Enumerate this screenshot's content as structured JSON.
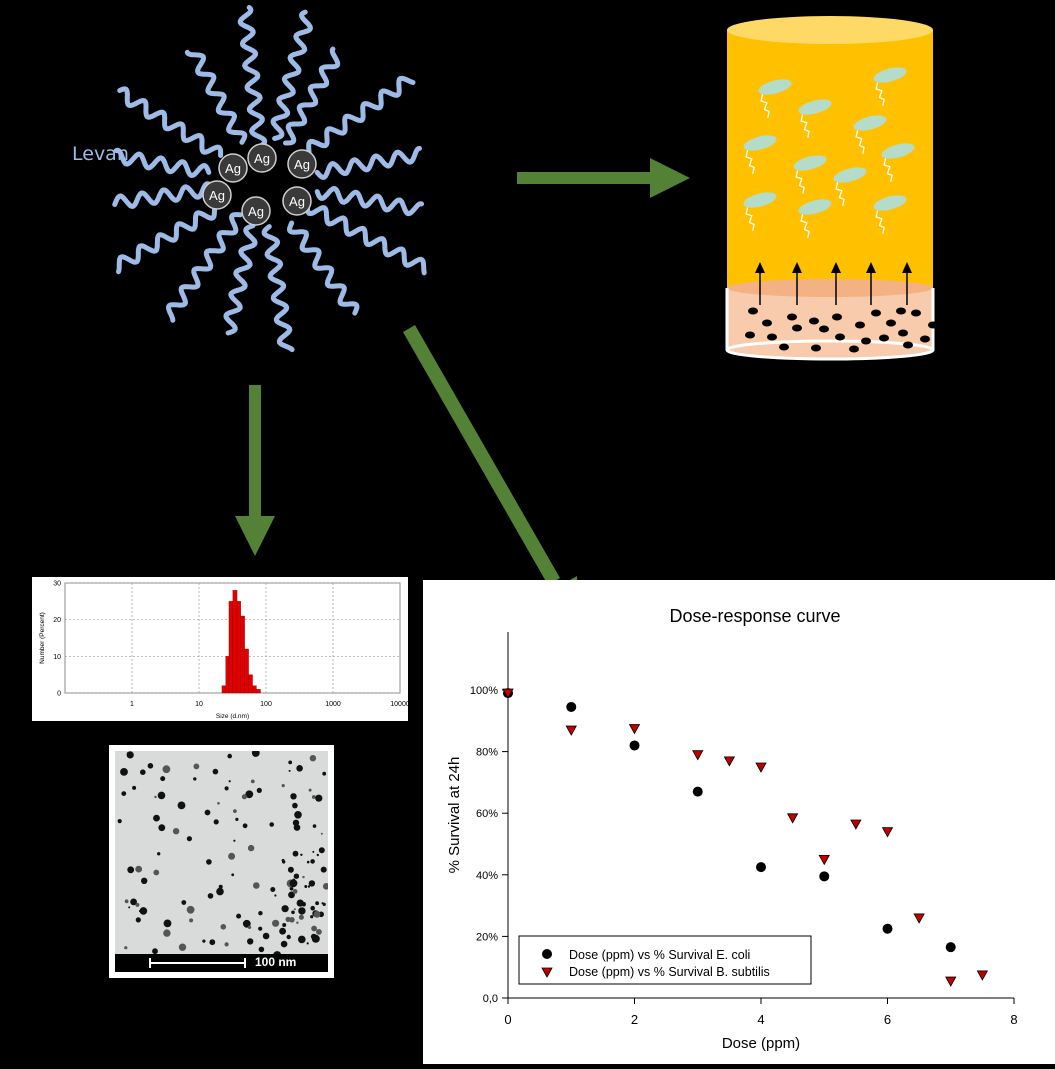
{
  "levan_label": "Levan",
  "ag_label": "Ag",
  "colors": {
    "levan_strand": "#9dbbe6",
    "arrow": "#538135",
    "medium": "#ffc000",
    "agar": "#f8cbad",
    "bacteria": "#b4dcc8",
    "ecoli_marker": "#000000",
    "bsubtilis_marker": "#c00000",
    "dls_bars": "#e00000"
  },
  "tem": {
    "scale_label": "100 nm"
  },
  "chart_data": [
    {
      "type": "bar",
      "xlabel": "Size (d.nm)",
      "ylabel": "Number (Percent)",
      "x_scale": "log",
      "xlim": [
        0.1,
        10000
      ],
      "x_ticks": [
        "1",
        "10",
        "100",
        "1000",
        "10000"
      ],
      "ylim": [
        0,
        30
      ],
      "y_ticks": [
        "0",
        "10",
        "20",
        "30"
      ],
      "bins": [
        22,
        25,
        28,
        32,
        37,
        42,
        48,
        55,
        63,
        72
      ],
      "values": [
        2,
        10,
        25,
        28,
        25,
        21,
        12,
        5,
        2,
        1
      ]
    },
    {
      "type": "scatter",
      "title": "Dose-response curve",
      "xlabel": "Dose (ppm)",
      "ylabel": "% Survival at 24h",
      "xlim": [
        0,
        8
      ],
      "ylim": [
        0,
        100
      ],
      "x_ticks": [
        "0",
        "2",
        "4",
        "6",
        "8"
      ],
      "y_ticks": [
        "0,0",
        "20%",
        "40%",
        "60%",
        "80%",
        "100%"
      ],
      "legend_position": "bottom-left",
      "series": [
        {
          "name": "Dose (ppm) vs % Survival E. coli",
          "marker": "circle",
          "x": [
            0,
            1,
            2,
            3,
            4,
            5,
            6,
            7
          ],
          "y": [
            99,
            94.5,
            82,
            67,
            42.5,
            39.5,
            22.5,
            16.5
          ]
        },
        {
          "name": "Dose (ppm) vs % Survival B. subtilis",
          "marker": "triangle",
          "x": [
            0,
            1,
            2,
            3,
            3.5,
            4,
            4.5,
            5,
            5.5,
            6,
            6.5,
            7,
            7.5
          ],
          "y": [
            99,
            87,
            87.5,
            79,
            77,
            75,
            58.5,
            45,
            56.5,
            54,
            26,
            5.5,
            7.5
          ]
        }
      ]
    }
  ]
}
